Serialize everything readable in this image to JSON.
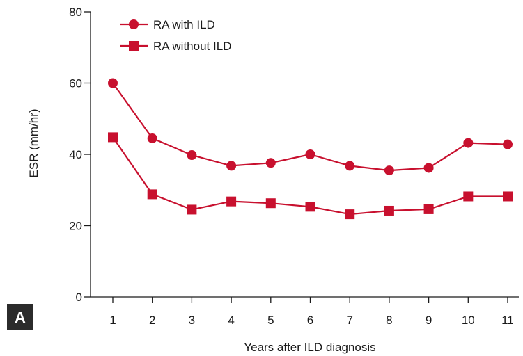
{
  "panel_label": "A",
  "chart_data": {
    "type": "line",
    "title": "",
    "xlabel": "Years after ILD diagnosis",
    "ylabel": "ESR (mm/hr)",
    "x": [
      1,
      2,
      3,
      4,
      5,
      6,
      7,
      8,
      9,
      10,
      11
    ],
    "x_tick_labels": [
      "1",
      "2",
      "3",
      "4",
      "5",
      "6",
      "7",
      "8",
      "9",
      "10",
      "11"
    ],
    "y_ticks": [
      0,
      20,
      40,
      60,
      80
    ],
    "y_tick_labels": [
      "0",
      "20",
      "40",
      "60",
      "80"
    ],
    "ylim": [
      0,
      80
    ],
    "xlim": [
      0.1,
      11.3
    ],
    "grid": false,
    "legend_position": "top-left",
    "color": "#c8102e",
    "series": [
      {
        "name": "RA with ILD",
        "marker": "circle",
        "values": [
          60,
          44.5,
          39.8,
          36.8,
          37.6,
          40,
          36.8,
          35.5,
          36.2,
          43.2,
          42.8
        ]
      },
      {
        "name": "RA without ILD",
        "marker": "square",
        "values": [
          44.8,
          28.8,
          24.5,
          26.8,
          26.3,
          25.3,
          23.2,
          24.2,
          24.6,
          28.2,
          28.2
        ]
      }
    ]
  }
}
